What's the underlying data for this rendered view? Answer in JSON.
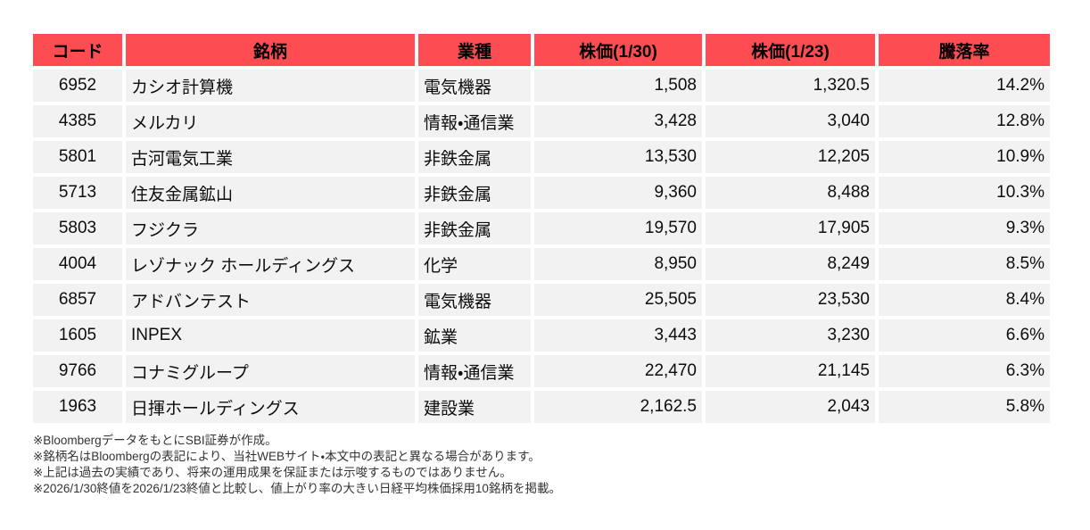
{
  "table": {
    "columns": [
      {
        "key": "code",
        "label": "コード"
      },
      {
        "key": "name",
        "label": "銘柄"
      },
      {
        "key": "industry",
        "label": "業種"
      },
      {
        "key": "price_0130",
        "label": "株価(1/30)"
      },
      {
        "key": "price_0123",
        "label": "株価(1/23)"
      },
      {
        "key": "change",
        "label": "騰落率"
      }
    ],
    "rows": [
      [
        "6952",
        "カシオ計算機",
        "電気機器",
        "1,508",
        "1,320.5",
        "14.2%"
      ],
      [
        "4385",
        "メルカリ",
        "情報・通信業",
        "3,428",
        "3,040",
        "12.8%"
      ],
      [
        "5801",
        "古河電気工業",
        "非鉄金属",
        "13,530",
        "12,205",
        "10.9%"
      ],
      [
        "5713",
        "住友金属鉱山",
        "非鉄金属",
        "9,360",
        "8,488",
        "10.3%"
      ],
      [
        "5803",
        "フジクラ",
        "非鉄金属",
        "19,570",
        "17,905",
        "9.3%"
      ],
      [
        "4004",
        "レゾナック ホールディングス",
        "化学",
        "8,950",
        "8,249",
        "8.5%"
      ],
      [
        "6857",
        "アドバンテスト",
        "電気機器",
        "25,505",
        "23,530",
        "8.4%"
      ],
      [
        "1605",
        "INPEX",
        "鉱業",
        "3,443",
        "3,230",
        "6.6%"
      ],
      [
        "9766",
        "コナミグループ",
        "情報・通信業",
        "22,470",
        "21,145",
        "6.3%"
      ],
      [
        "1963",
        "日揮ホールディングス",
        "建設業",
        "2,162.5",
        "2,043",
        "5.8%"
      ]
    ]
  },
  "footnotes": [
    "※BloombergデータをもとにSBI証券が作成。",
    "※銘柄名はBloombergの表記により、当社WEBサイト・本文中の表記と異なる場合があります。",
    "※上記は過去の実績であり、将来の運用成果を保証または示唆するものではありません。",
    "※2026/1/30終値を2026/1/23終値と比較し、値上がり率の大きい日経平均株価採用10銘柄を掲載。"
  ],
  "colors": {
    "header_bg": "#FD4D52",
    "row_bg": "#F2F2F2",
    "gap": "#FFFFFF",
    "footnote_text": "#333333"
  }
}
